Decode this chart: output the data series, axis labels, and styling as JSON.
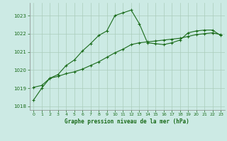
{
  "title": "Graphe pression niveau de la mer (hPa)",
  "background_color": "#cceae4",
  "line_color": "#1a6b1a",
  "grid_color": "#aaccbb",
  "xlim": [
    -0.5,
    23.5
  ],
  "ylim": [
    1017.8,
    1023.7
  ],
  "yticks": [
    1018,
    1019,
    1020,
    1021,
    1022,
    1023
  ],
  "xticks": [
    0,
    1,
    2,
    3,
    4,
    5,
    6,
    7,
    8,
    9,
    10,
    11,
    12,
    13,
    14,
    15,
    16,
    17,
    18,
    19,
    20,
    21,
    22,
    23
  ],
  "series1_x": [
    0,
    1,
    2,
    3,
    4,
    5,
    6,
    7,
    8,
    9,
    10,
    11,
    12,
    13,
    14,
    15,
    16,
    17,
    18,
    19,
    20,
    21,
    22,
    23
  ],
  "series1_y": [
    1018.35,
    1019.0,
    1019.55,
    1019.75,
    1020.25,
    1020.55,
    1021.05,
    1021.45,
    1021.9,
    1022.15,
    1023.0,
    1023.15,
    1023.3,
    1022.55,
    1021.5,
    1021.45,
    1021.4,
    1021.5,
    1021.65,
    1022.05,
    1022.15,
    1022.2,
    1022.2,
    1021.9
  ],
  "series2_x": [
    0,
    1,
    2,
    3,
    4,
    5,
    6,
    7,
    8,
    9,
    10,
    11,
    12,
    13,
    14,
    15,
    16,
    17,
    18,
    19,
    20,
    21,
    22,
    23
  ],
  "series2_y": [
    1019.05,
    1019.15,
    1019.55,
    1019.65,
    1019.8,
    1019.9,
    1020.05,
    1020.25,
    1020.45,
    1020.7,
    1020.95,
    1021.15,
    1021.4,
    1021.5,
    1021.55,
    1021.6,
    1021.65,
    1021.7,
    1021.75,
    1021.85,
    1021.95,
    1022.0,
    1022.05,
    1021.95
  ],
  "ylabel_fontsize": 5.5,
  "tick_fontsize": 5,
  "marker_size": 2.5,
  "linewidth": 0.8
}
